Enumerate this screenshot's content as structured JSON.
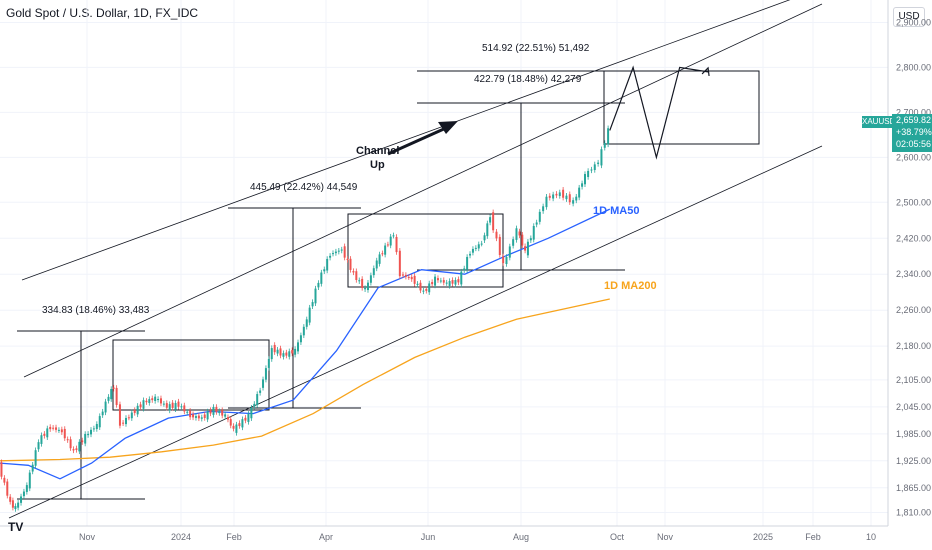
{
  "header": {
    "title": "Gold Spot / U.S. Dollar, 1D, FX_IDC",
    "currency": "USD"
  },
  "price_tag": {
    "symbol": "XAUUSD",
    "price": "2,659.82",
    "change": "+38.79%",
    "timer": "02:05:56"
  },
  "logo_text": "TV",
  "colors": {
    "up": "#26a69a",
    "down": "#ef5350",
    "ma50": "#2962ff",
    "ma200": "#f7a41d",
    "annotation": "#131722",
    "grid": "#f0f3fa"
  },
  "annotations": {
    "measure_1": "334.83 (18.46%) 33,483",
    "measure_2": "445.49 (22.42%) 44,549",
    "measure_3": "422.79 (18.48%) 42,279",
    "measure_4": "514.92 (22.51%) 51,492",
    "channel_label_1": "Channel",
    "channel_label_2": "Up",
    "ma50_label": "1D MA50",
    "ma200_label": "1D MA200"
  },
  "chart_data": {
    "type": "line",
    "title": "Gold Spot / U.S. Dollar, 1D, FX_IDC",
    "x_ticks": [
      "Nov",
      "2024",
      "Feb",
      "Apr",
      "Jun",
      "Aug",
      "Oct",
      "Nov",
      "2025",
      "Feb",
      "10"
    ],
    "y_ticks": [
      1810,
      1865,
      1925,
      1985,
      2045,
      2105,
      2180,
      2260,
      2340,
      2420,
      2500,
      2600,
      2700,
      2800,
      2900
    ],
    "ylim": [
      1780,
      2950
    ],
    "x_range": [
      "2023-09-26",
      "2025-03-12"
    ],
    "series": [
      {
        "name": "XAUUSD",
        "x": [
          "2023-09-26",
          "2023-10-03",
          "2023-10-06",
          "2023-10-13",
          "2023-10-20",
          "2023-10-27",
          "2023-11-03",
          "2023-11-10",
          "2023-11-17",
          "2023-11-24",
          "2023-12-01",
          "2023-12-04",
          "2023-12-08",
          "2023-12-15",
          "2023-12-22",
          "2023-12-29",
          "2024-01-05",
          "2024-01-12",
          "2024-01-19",
          "2024-01-26",
          "2024-02-02",
          "2024-02-09",
          "2024-02-14",
          "2024-02-23",
          "2024-03-01",
          "2024-03-08",
          "2024-03-15",
          "2024-03-22",
          "2024-03-29",
          "2024-04-05",
          "2024-04-12",
          "2024-04-19",
          "2024-04-26",
          "2024-05-03",
          "2024-05-10",
          "2024-05-20",
          "2024-05-24",
          "2024-05-31",
          "2024-06-07",
          "2024-06-14",
          "2024-06-21",
          "2024-06-28",
          "2024-07-05",
          "2024-07-12",
          "2024-07-17",
          "2024-07-25",
          "2024-08-02",
          "2024-08-07",
          "2024-08-14",
          "2024-08-20",
          "2024-08-28",
          "2024-09-05",
          "2024-09-12",
          "2024-09-20",
          "2024-09-26"
        ],
        "values": [
          1915,
          1830,
          1820,
          1870,
          1970,
          2000,
          1990,
          1945,
          1980,
          2005,
          2070,
          2090,
          2005,
          2030,
          2055,
          2065,
          2045,
          2050,
          2025,
          2020,
          2040,
          2025,
          1995,
          2025,
          2085,
          2175,
          2160,
          2170,
          2240,
          2325,
          2385,
          2395,
          2340,
          2305,
          2370,
          2430,
          2340,
          2330,
          2300,
          2330,
          2320,
          2325,
          2390,
          2410,
          2470,
          2360,
          2440,
          2390,
          2460,
          2510,
          2520,
          2500,
          2560,
          2590,
          2660
        ]
      },
      {
        "name": "1D MA50",
        "x": [
          "2023-09-26",
          "2023-10-13",
          "2023-11-01",
          "2023-11-20",
          "2023-12-10",
          "2024-01-05",
          "2024-01-30",
          "2024-02-25",
          "2024-03-20",
          "2024-04-15",
          "2024-05-10",
          "2024-06-05",
          "2024-07-01",
          "2024-07-25",
          "2024-08-20",
          "2024-09-26"
        ],
        "values": [
          1920,
          1915,
          1885,
          1920,
          1975,
          2020,
          2035,
          2030,
          2060,
          2170,
          2310,
          2350,
          2340,
          2380,
          2420,
          2485
        ]
      },
      {
        "name": "1D MA200",
        "x": [
          "2023-09-26",
          "2023-11-01",
          "2023-12-01",
          "2024-01-01",
          "2024-02-01",
          "2024-03-01",
          "2024-04-01",
          "2024-05-01",
          "2024-06-01",
          "2024-07-01",
          "2024-08-01",
          "2024-09-26"
        ],
        "values": [
          1925,
          1928,
          1933,
          1945,
          1960,
          1980,
          2030,
          2095,
          2155,
          2200,
          2240,
          2285
        ]
      }
    ],
    "projection": {
      "x": [
        "2024-09-26",
        "2024-10-10",
        "2024-10-24",
        "2024-11-07",
        "2024-11-24"
      ],
      "values": [
        2660,
        2800,
        2600,
        2800,
        2790
      ]
    },
    "grid": true,
    "legend": "none"
  }
}
